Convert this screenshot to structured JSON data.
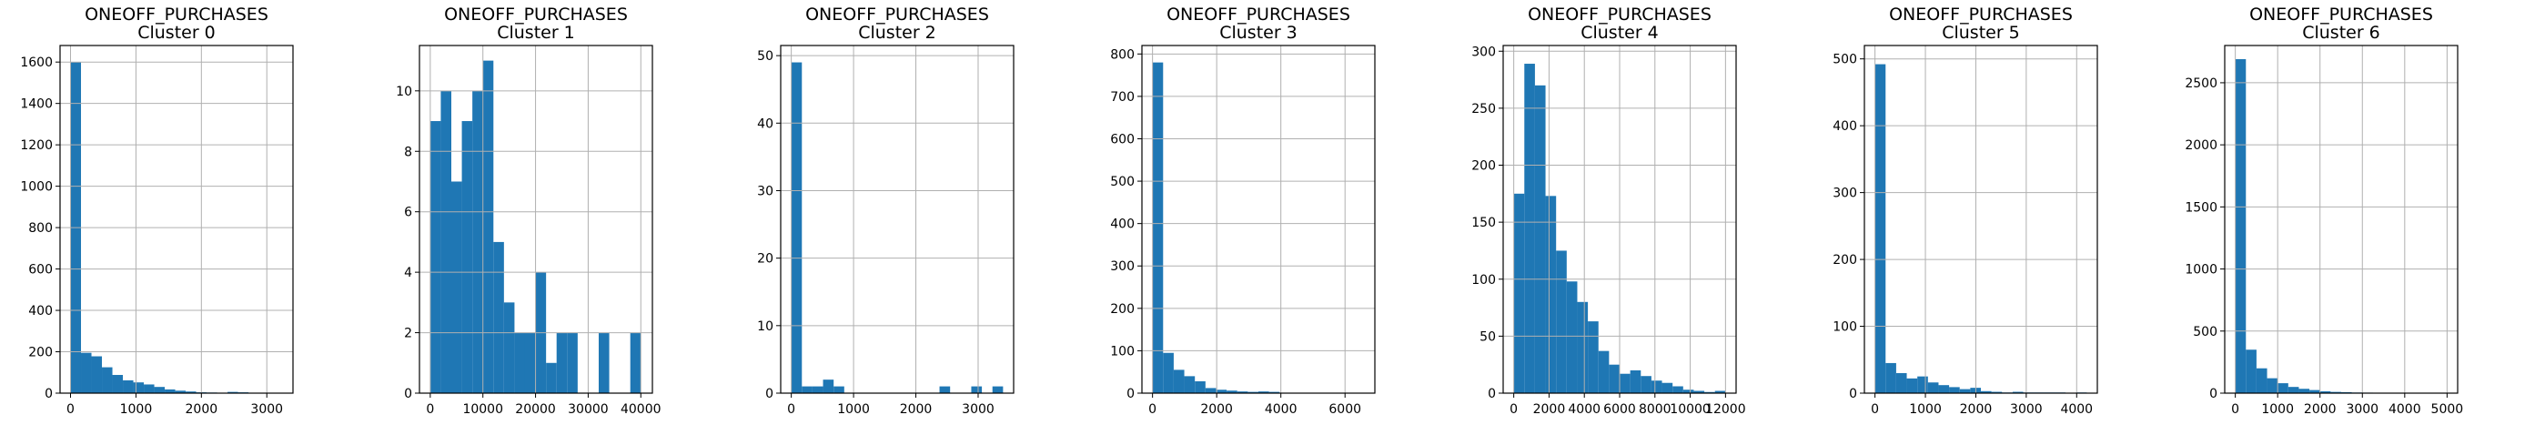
{
  "chart_data": [
    {
      "type": "bar",
      "subtype": "histogram",
      "title": "ONEOFF_PURCHASES",
      "subtitle": "Cluster 0",
      "bins": 20,
      "xlim": [
        -160,
        3400
      ],
      "ylim": [
        0,
        1680
      ],
      "xticks": [
        0,
        1000,
        2000,
        3000
      ],
      "yticks": [
        0,
        200,
        400,
        600,
        800,
        1000,
        1200,
        1400,
        1600
      ],
      "bin_edges": [
        0,
        160,
        320,
        480,
        640,
        800,
        960,
        1120,
        1280,
        1440,
        1600,
        1760,
        1920,
        2080,
        2240,
        2400,
        2560,
        2720,
        2880,
        3040,
        3200
      ],
      "values": [
        1600,
        195,
        178,
        125,
        88,
        62,
        52,
        42,
        30,
        18,
        12,
        8,
        4,
        3,
        2,
        6,
        4,
        1,
        1,
        2
      ],
      "grid": true
    },
    {
      "type": "bar",
      "subtype": "histogram",
      "title": "ONEOFF_PURCHASES",
      "subtitle": "Cluster 1",
      "bins": 20,
      "xlim": [
        -2050,
        42200
      ],
      "ylim": [
        0,
        11.5
      ],
      "xticks": [
        0,
        10000,
        20000,
        30000,
        40000
      ],
      "yticks": [
        0,
        2,
        4,
        6,
        8,
        10
      ],
      "bin_edges": [
        0,
        2000,
        4000,
        6000,
        8000,
        10000,
        12000,
        14000,
        16000,
        18000,
        20000,
        22000,
        24000,
        26000,
        28000,
        30000,
        32000,
        34000,
        36000,
        38000,
        40000
      ],
      "values": [
        9,
        10,
        7,
        9,
        10,
        11,
        5,
        3,
        2,
        2,
        4,
        1,
        2,
        2,
        0,
        0,
        2,
        0,
        0,
        2
      ],
      "grid": true
    },
    {
      "type": "bar",
      "subtype": "histogram",
      "title": "ONEOFF_PURCHASES",
      "subtitle": "Cluster 2",
      "bins": 20,
      "xlim": [
        -170,
        3570
      ],
      "ylim": [
        0,
        51.5
      ],
      "xticks": [
        0,
        1000,
        2000,
        3000
      ],
      "yticks": [
        0,
        10,
        20,
        30,
        40,
        50
      ],
      "bin_edges": [
        0,
        170,
        340,
        510,
        680,
        850,
        1020,
        1190,
        1360,
        1530,
        1700,
        1870,
        2040,
        2210,
        2380,
        2550,
        2720,
        2890,
        3060,
        3230,
        3400
      ],
      "values": [
        49,
        1,
        1,
        2,
        1,
        0,
        0,
        0,
        0,
        0,
        0,
        0,
        0,
        0,
        1,
        0,
        0,
        1,
        0,
        1
      ],
      "grid": true
    },
    {
      "type": "bar",
      "subtype": "histogram",
      "title": "ONEOFF_PURCHASES",
      "subtitle": "Cluster 3",
      "bins": 20,
      "xlim": [
        -330,
        6930
      ],
      "ylim": [
        0,
        820
      ],
      "xticks": [
        0,
        2000,
        4000,
        6000
      ],
      "yticks": [
        0,
        100,
        200,
        300,
        400,
        500,
        600,
        700,
        800
      ],
      "bin_edges": [
        0,
        330,
        660,
        990,
        1320,
        1650,
        1980,
        2310,
        2640,
        2970,
        3300,
        3630,
        3960,
        4290,
        4620,
        4950,
        5280,
        5610,
        5940,
        6270,
        6600
      ],
      "values": [
        780,
        95,
        55,
        40,
        28,
        12,
        8,
        6,
        4,
        3,
        4,
        3,
        1,
        1,
        0,
        0,
        1,
        0,
        0,
        1
      ],
      "grid": true
    },
    {
      "type": "bar",
      "subtype": "histogram",
      "title": "ONEOFF_PURCHASES",
      "subtitle": "Cluster 4",
      "bins": 20,
      "xlim": [
        -600,
        12600
      ],
      "ylim": [
        0,
        305
      ],
      "xticks": [
        0,
        2000,
        4000,
        6000,
        8000,
        10000,
        12000
      ],
      "yticks": [
        0,
        50,
        100,
        150,
        200,
        250,
        300
      ],
      "bin_edges": [
        0,
        600,
        1200,
        1800,
        2400,
        3000,
        3600,
        4200,
        4800,
        5400,
        6000,
        6600,
        7200,
        7800,
        8400,
        9000,
        9600,
        10200,
        10800,
        11400,
        12000
      ],
      "values": [
        175,
        289,
        270,
        173,
        125,
        98,
        80,
        63,
        37,
        25,
        17,
        20,
        15,
        11,
        9,
        6,
        3,
        2,
        1,
        2
      ],
      "grid": true
    },
    {
      "type": "bar",
      "subtype": "histogram",
      "title": "ONEOFF_PURCHASES",
      "subtitle": "Cluster 5",
      "bins": 20,
      "xlim": [
        -210,
        4410
      ],
      "ylim": [
        0,
        520
      ],
      "xticks": [
        0,
        1000,
        2000,
        3000,
        4000
      ],
      "yticks": [
        0,
        100,
        200,
        300,
        400,
        500
      ],
      "bin_edges": [
        0,
        210,
        420,
        630,
        840,
        1050,
        1260,
        1470,
        1680,
        1890,
        2100,
        2310,
        2520,
        2730,
        2940,
        3150,
        3360,
        3570,
        3780,
        3990,
        4200
      ],
      "values": [
        492,
        45,
        30,
        22,
        25,
        16,
        12,
        9,
        6,
        8,
        3,
        2,
        1,
        2,
        1,
        1,
        1,
        1,
        0,
        1
      ],
      "grid": true
    },
    {
      "type": "bar",
      "subtype": "histogram",
      "title": "ONEOFF_PURCHASES",
      "subtitle": "Cluster 6",
      "bins": 20,
      "xlim": [
        -250,
        5250
      ],
      "ylim": [
        0,
        2800
      ],
      "xticks": [
        0,
        1000,
        2000,
        3000,
        4000,
        5000
      ],
      "yticks": [
        0,
        500,
        1000,
        1500,
        2000,
        2500
      ],
      "bin_edges": [
        0,
        250,
        500,
        750,
        1000,
        1250,
        1500,
        1750,
        2000,
        2250,
        2500,
        2750,
        3000,
        3250,
        3500,
        3750,
        4000,
        4250,
        4500,
        4750,
        5000
      ],
      "values": [
        2690,
        350,
        200,
        120,
        80,
        50,
        35,
        25,
        15,
        10,
        8,
        5,
        4,
        3,
        2,
        2,
        1,
        1,
        1,
        1
      ],
      "grid": true
    }
  ]
}
